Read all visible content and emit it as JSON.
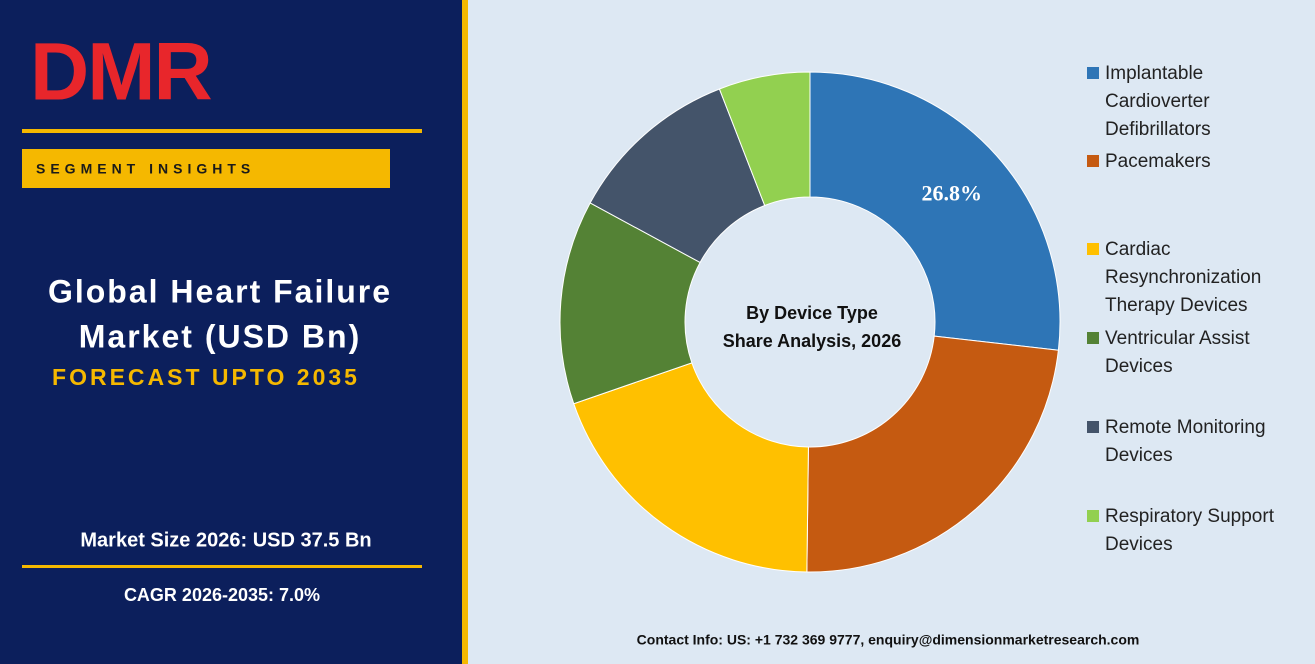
{
  "header": {
    "logo": "DMR",
    "badge": "SEGMENT INSIGHTS",
    "title_line1": "Global Heart Failure",
    "title_line2": "Market (USD Bn)",
    "subtitle": "FORECAST UPTO 2035",
    "market_size": "Market Size 2026: USD 37.5 Bn",
    "cagr": "CAGR 2026-2035: 7.0%"
  },
  "chart_data": {
    "type": "pie",
    "title": "By Device Type",
    "subtitle": "Share Analysis, 2026",
    "categories": [
      "Implantable Cardioverter Defibrillators",
      "Pacemakers",
      "Cardiac Resynchronization Therapy Devices",
      "Ventricular Assist Devices",
      "Remote Monitoring Devices",
      "Respiratory Support Devices"
    ],
    "values": [
      26.8,
      23.4,
      19.5,
      13.2,
      11.2,
      5.9
    ],
    "value_labels": [
      "26.8%",
      null,
      null,
      null,
      null,
      null
    ],
    "colors": [
      "#2e75b6",
      "#c55a11",
      "#ffc000",
      "#548235",
      "#44546a",
      "#92d050"
    ],
    "legend": "right"
  },
  "footer": {
    "contact": "Contact Info: US: +1 732 369 9777, enquiry@dimensionmarketresearch.com"
  }
}
